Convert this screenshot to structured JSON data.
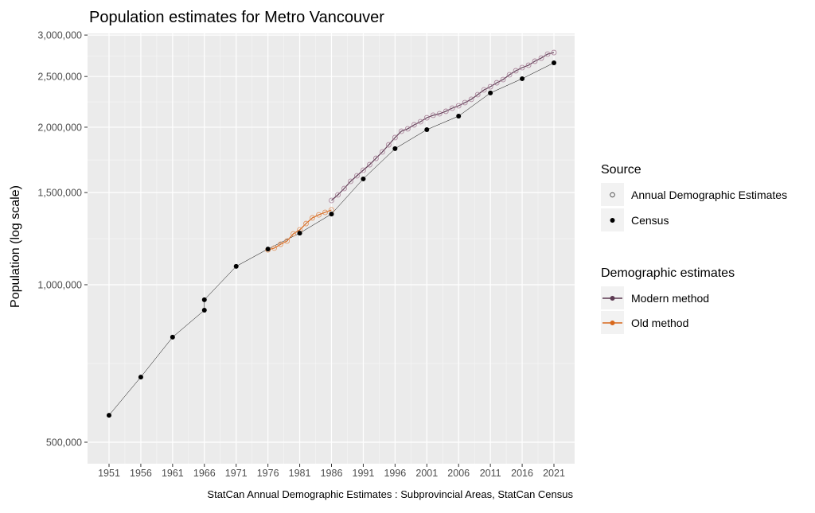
{
  "chart_data": {
    "type": "line",
    "title": "Population estimates for Metro Vancouver",
    "ylabel": "Population (log scale)",
    "xlabel": "",
    "caption": "StatCan Annual Demographic Estimates : Subprovincial Areas, StatCan Census",
    "y_scale": "log",
    "ylim": [
      500000,
      3000000
    ],
    "xlim": [
      1951,
      2021
    ],
    "grid": true,
    "legend_position": "right",
    "x_ticks": [
      "1951",
      "1956",
      "1961",
      "1966",
      "1971",
      "1976",
      "1981",
      "1986",
      "1991",
      "1996",
      "2001",
      "2006",
      "2011",
      "2016",
      "2021"
    ],
    "y_ticks": [
      {
        "value": 500000,
        "label": "500,000"
      },
      {
        "value": 1000000,
        "label": "1,000,000"
      },
      {
        "value": 1500000,
        "label": "1,500,000"
      },
      {
        "value": 2000000,
        "label": "2,000,000"
      },
      {
        "value": 2500000,
        "label": "2,500,000"
      },
      {
        "value": 3000000,
        "label": "3,000,000"
      }
    ],
    "legend": {
      "source_title": "Source",
      "source_items": [
        {
          "label": "Annual Demographic Estimates",
          "shape": "open-circle"
        },
        {
          "label": "Census",
          "shape": "filled-circle"
        }
      ],
      "method_title": "Demographic estimates",
      "method_items": [
        {
          "label": "Modern method",
          "color": "#5c3a52"
        },
        {
          "label": "Old method",
          "color": "#d8681c"
        }
      ]
    },
    "series": [
      {
        "name": "Census",
        "color": "#000000",
        "points": [
          [
            1951,
            563000
          ],
          [
            1956,
            666000
          ],
          [
            1961,
            794000
          ],
          [
            1966,
            894000
          ],
          [
            1966,
            936000
          ],
          [
            1971,
            1084000
          ],
          [
            1976,
            1170000
          ],
          [
            1981,
            1255000
          ],
          [
            1986,
            1365000
          ],
          [
            1991,
            1593000
          ],
          [
            1996,
            1820000
          ],
          [
            2001,
            1979000
          ],
          [
            2006,
            2100000
          ],
          [
            2011,
            2325000
          ],
          [
            2016,
            2476000
          ],
          [
            2021,
            2655000
          ]
        ]
      },
      {
        "name": "Old method",
        "color": "#d8681c",
        "point_color": "#e0915a",
        "points": [
          [
            1976,
            1166000
          ],
          [
            1977,
            1175000
          ],
          [
            1978,
            1195000
          ],
          [
            1979,
            1212000
          ],
          [
            1980,
            1251000
          ],
          [
            1981,
            1273000
          ],
          [
            1982,
            1309000
          ],
          [
            1983,
            1342000
          ],
          [
            1984,
            1360000
          ],
          [
            1985,
            1375000
          ],
          [
            1986,
            1390000
          ]
        ]
      },
      {
        "name": "Modern method",
        "color": "#5c3a52",
        "point_color": "#a88098",
        "points": [
          [
            1986,
            1449000
          ],
          [
            1987,
            1485000
          ],
          [
            1988,
            1527000
          ],
          [
            1989,
            1576000
          ],
          [
            1990,
            1615000
          ],
          [
            1991,
            1655000
          ],
          [
            1992,
            1696000
          ],
          [
            1993,
            1744000
          ],
          [
            1994,
            1794000
          ],
          [
            1995,
            1851000
          ],
          [
            1996,
            1911000
          ],
          [
            1997,
            1965000
          ],
          [
            1998,
            1986000
          ],
          [
            1999,
            2021000
          ],
          [
            2000,
            2049000
          ],
          [
            2001,
            2085000
          ],
          [
            2002,
            2108000
          ],
          [
            2003,
            2122000
          ],
          [
            2004,
            2145000
          ],
          [
            2005,
            2175000
          ],
          [
            2006,
            2198000
          ],
          [
            2007,
            2229000
          ],
          [
            2008,
            2261000
          ],
          [
            2009,
            2308000
          ],
          [
            2010,
            2357000
          ],
          [
            2011,
            2390000
          ],
          [
            2012,
            2432000
          ],
          [
            2013,
            2467000
          ],
          [
            2014,
            2519000
          ],
          [
            2015,
            2564000
          ],
          [
            2016,
            2600000
          ],
          [
            2017,
            2627000
          ],
          [
            2018,
            2674000
          ],
          [
            2019,
            2711000
          ],
          [
            2020,
            2759000
          ],
          [
            2021,
            2778000
          ]
        ]
      }
    ]
  }
}
